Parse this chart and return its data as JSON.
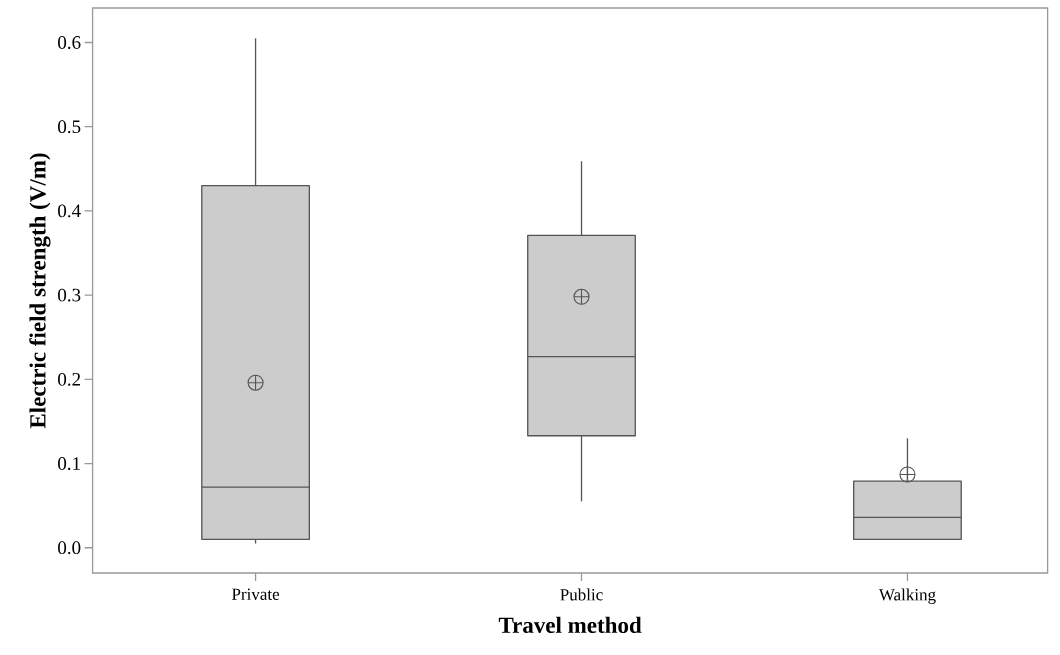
{
  "chart_data": {
    "type": "box",
    "categories": [
      "Private",
      "Public",
      "Walking"
    ],
    "boxes": [
      {
        "low": 0.005,
        "q1": 0.01,
        "median": 0.072,
        "q3": 0.43,
        "high": 0.605,
        "mean": 0.196
      },
      {
        "low": 0.055,
        "q1": 0.133,
        "median": 0.227,
        "q3": 0.371,
        "high": 0.459,
        "mean": 0.298
      },
      {
        "low": 0.01,
        "q1": 0.01,
        "median": 0.036,
        "q3": 0.079,
        "high": 0.13,
        "mean": 0.087
      }
    ],
    "color": "#cccccc",
    "xlabel": "Travel method",
    "ylabel": "Electric field strength (V/m)",
    "ylim": [
      -0.03,
      0.641
    ],
    "yticks": [
      {
        "value": 0,
        "label": "0.0"
      },
      0.1,
      0.2,
      0.3,
      0.4,
      0.5,
      0.6
    ],
    "grid": false
  }
}
